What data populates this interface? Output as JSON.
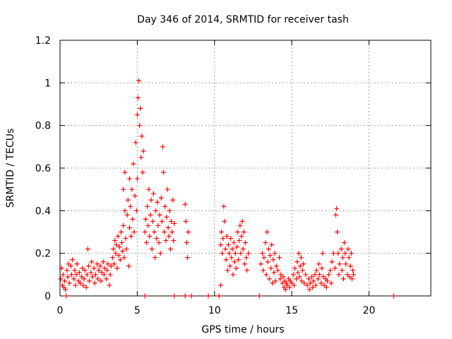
{
  "chart_data": {
    "type": "scatter",
    "title": "Day 346 of 2014, SRMTID for receiver tash",
    "xlabel": "GPS time / hours",
    "ylabel": "SRMTID / TECUs",
    "xlim": [
      0,
      24
    ],
    "ylim": [
      0,
      1.2
    ],
    "x_ticks": [
      0,
      5,
      10,
      15,
      20
    ],
    "y_ticks": [
      0,
      0.2,
      0.4,
      0.6,
      0.8,
      1,
      1.2
    ],
    "x_tick_labels": [
      "0",
      "5",
      "10",
      "15",
      "20"
    ],
    "y_tick_labels": [
      "0",
      "0.2",
      "0.4",
      "0.6",
      "0.8",
      "1",
      "1.2"
    ],
    "grid": true,
    "marker": "+",
    "color": "#ff0000",
    "series": [
      {
        "name": "SRMTID",
        "points": [
          [
            0.05,
            0.08
          ],
          [
            0.1,
            0.13
          ],
          [
            0.15,
            0.05
          ],
          [
            0.2,
            0.1
          ],
          [
            0.25,
            0.04
          ],
          [
            0.3,
            0.07
          ],
          [
            0.35,
            0.03
          ],
          [
            0.45,
            0.12
          ],
          [
            0.5,
            0.09
          ],
          [
            0.55,
            0.15
          ],
          [
            0.6,
            0.06
          ],
          [
            0.7,
            0.14
          ],
          [
            0.75,
            0.1
          ],
          [
            0.8,
            0.17
          ],
          [
            0.9,
            0.08
          ],
          [
            0.95,
            0.12
          ],
          [
            1.0,
            0.05
          ],
          [
            1.05,
            0.1
          ],
          [
            1.1,
            0.15
          ],
          [
            1.2,
            0.07
          ],
          [
            1.25,
            0.11
          ],
          [
            1.3,
            0.06
          ],
          [
            1.4,
            0.09
          ],
          [
            1.45,
            0.13
          ],
          [
            1.5,
            0.05
          ],
          [
            1.55,
            0.08
          ],
          [
            1.6,
            0.12
          ],
          [
            1.7,
            0.04
          ],
          [
            1.75,
            0.1
          ],
          [
            1.8,
            0.22
          ],
          [
            1.85,
            0.14
          ],
          [
            1.9,
            0.07
          ],
          [
            2.0,
            0.11
          ],
          [
            2.05,
            0.16
          ],
          [
            2.1,
            0.09
          ],
          [
            2.2,
            0.13
          ],
          [
            2.25,
            0.06
          ],
          [
            2.3,
            0.1
          ],
          [
            2.4,
            0.15
          ],
          [
            2.45,
            0.08
          ],
          [
            2.5,
            0.12
          ],
          [
            2.6,
            0.14
          ],
          [
            2.65,
            0.07
          ],
          [
            2.7,
            0.11
          ],
          [
            2.8,
            0.16
          ],
          [
            2.85,
            0.1
          ],
          [
            2.9,
            0.13
          ],
          [
            3.0,
            0.08
          ],
          [
            3.05,
            0.12
          ],
          [
            3.1,
            0.15
          ],
          [
            3.2,
            0.05
          ],
          [
            3.25,
            0.1
          ],
          [
            3.3,
            0.14
          ],
          [
            3.4,
            0.18
          ],
          [
            3.45,
            0.22
          ],
          [
            3.5,
            0.15
          ],
          [
            3.55,
            0.26
          ],
          [
            3.6,
            0.2
          ],
          [
            3.65,
            0.24
          ],
          [
            3.7,
            0.13
          ],
          [
            3.75,
            0.28
          ],
          [
            3.8,
            0.19
          ],
          [
            3.85,
            0.23
          ],
          [
            3.9,
            0.17
          ],
          [
            3.95,
            0.3
          ],
          [
            4.0,
            0.25
          ],
          [
            4.05,
            0.21
          ],
          [
            4.1,
            0.33
          ],
          [
            4.1,
            0.5
          ],
          [
            4.15,
            0.18
          ],
          [
            4.2,
            0.4
          ],
          [
            4.2,
            0.58
          ],
          [
            4.25,
            0.27
          ],
          [
            4.3,
            0.22
          ],
          [
            4.35,
            0.38
          ],
          [
            4.4,
            0.45
          ],
          [
            4.45,
            0.14
          ],
          [
            4.5,
            0.32
          ],
          [
            4.5,
            0.55
          ],
          [
            4.55,
            0.42
          ],
          [
            4.6,
            0.28
          ],
          [
            4.65,
            0.5
          ],
          [
            4.7,
            0.36
          ],
          [
            4.75,
            0.62
          ],
          [
            4.8,
            0.3
          ],
          [
            4.85,
            0.47
          ],
          [
            4.9,
            0.72
          ],
          [
            4.95,
            0.4
          ],
          [
            5.0,
            0.55
          ],
          [
            5.0,
            0.85
          ],
          [
            5.05,
            0.93
          ],
          [
            5.1,
            1.01
          ],
          [
            5.15,
            0.8
          ],
          [
            5.2,
            0.88
          ],
          [
            5.25,
            0.65
          ],
          [
            5.3,
            0.75
          ],
          [
            5.35,
            0.58
          ],
          [
            5.4,
            0.68
          ],
          [
            5.5,
            0.3
          ],
          [
            5.55,
            0.36
          ],
          [
            5.6,
            0.25
          ],
          [
            5.65,
            0.42
          ],
          [
            5.7,
            0.33
          ],
          [
            5.75,
            0.5
          ],
          [
            5.8,
            0.28
          ],
          [
            5.85,
            0.38
          ],
          [
            5.9,
            0.45
          ],
          [
            5.95,
            0.22
          ],
          [
            6.0,
            0.35
          ],
          [
            6.05,
            0.48
          ],
          [
            6.1,
            0.3
          ],
          [
            6.15,
            0.18
          ],
          [
            6.2,
            0.4
          ],
          [
            6.25,
            0.27
          ],
          [
            6.3,
            0.44
          ],
          [
            6.35,
            0.33
          ],
          [
            6.4,
            0.25
          ],
          [
            6.45,
            0.38
          ],
          [
            6.5,
            0.2
          ],
          [
            6.55,
            0.46
          ],
          [
            6.6,
            0.35
          ],
          [
            6.65,
            0.7
          ],
          [
            6.7,
            0.58
          ],
          [
            6.75,
            0.3
          ],
          [
            6.8,
            0.42
          ],
          [
            6.85,
            0.26
          ],
          [
            6.9,
            0.37
          ],
          [
            6.95,
            0.5
          ],
          [
            7.0,
            0.32
          ],
          [
            7.05,
            0.28
          ],
          [
            7.1,
            0.4
          ],
          [
            7.15,
            0.22
          ],
          [
            7.2,
            0.35
          ],
          [
            7.25,
            0.3
          ],
          [
            7.3,
            0.45
          ],
          [
            7.35,
            0.26
          ],
          [
            7.4,
            0.34
          ],
          [
            8.1,
            0.43
          ],
          [
            8.15,
            0.35
          ],
          [
            8.2,
            0.25
          ],
          [
            8.25,
            0.18
          ],
          [
            8.3,
            0.3
          ],
          [
            10.4,
            0.24
          ],
          [
            10.45,
            0.3
          ],
          [
            10.5,
            0.2
          ],
          [
            10.55,
            0.27
          ],
          [
            10.6,
            0.42
          ],
          [
            10.65,
            0.35
          ],
          [
            10.7,
            0.22
          ],
          [
            10.75,
            0.17
          ],
          [
            10.8,
            0.28
          ],
          [
            10.85,
            0.12
          ],
          [
            10.9,
            0.24
          ],
          [
            10.95,
            0.2
          ],
          [
            11.0,
            0.14
          ],
          [
            11.05,
            0.27
          ],
          [
            11.1,
            0.18
          ],
          [
            11.15,
            0.22
          ],
          [
            11.2,
            0.1
          ],
          [
            11.25,
            0.25
          ],
          [
            11.3,
            0.16
          ],
          [
            11.35,
            0.2
          ],
          [
            11.4,
            0.13
          ],
          [
            11.45,
            0.23
          ],
          [
            11.5,
            0.3
          ],
          [
            11.55,
            0.17
          ],
          [
            11.6,
            0.26
          ],
          [
            11.65,
            0.33
          ],
          [
            11.7,
            0.2
          ],
          [
            11.75,
            0.28
          ],
          [
            11.8,
            0.35
          ],
          [
            11.85,
            0.22
          ],
          [
            11.9,
            0.3
          ],
          [
            11.95,
            0.15
          ],
          [
            12.0,
            0.25
          ],
          [
            12.05,
            0.18
          ],
          [
            12.1,
            0.12
          ],
          [
            12.2,
            0.2
          ],
          [
            13.0,
            0.15
          ],
          [
            13.1,
            0.2
          ],
          [
            13.15,
            0.12
          ],
          [
            13.2,
            0.18
          ],
          [
            13.3,
            0.25
          ],
          [
            13.35,
            0.1
          ],
          [
            13.4,
            0.3
          ],
          [
            13.45,
            0.16
          ],
          [
            13.5,
            0.22
          ],
          [
            13.55,
            0.08
          ],
          [
            13.6,
            0.19
          ],
          [
            13.65,
            0.13
          ],
          [
            13.7,
            0.24
          ],
          [
            13.75,
            0.06
          ],
          [
            13.8,
            0.17
          ],
          [
            13.85,
            0.11
          ],
          [
            13.9,
            0.2
          ],
          [
            13.95,
            0.07
          ],
          [
            14.0,
            0.14
          ],
          [
            14.1,
            0.12
          ],
          [
            14.2,
            0.18
          ],
          [
            14.25,
            0.08
          ],
          [
            14.3,
            0.1
          ],
          [
            14.4,
            0.06
          ],
          [
            14.45,
            0.09
          ],
          [
            14.5,
            0.04
          ],
          [
            14.55,
            0.07
          ],
          [
            14.6,
            0.03
          ],
          [
            14.65,
            0.06
          ],
          [
            14.7,
            0.05
          ],
          [
            14.8,
            0.08
          ],
          [
            14.85,
            0.04
          ],
          [
            14.9,
            0.07
          ],
          [
            15.0,
            0.06
          ],
          [
            15.1,
            0.1
          ],
          [
            15.15,
            0.05
          ],
          [
            15.2,
            0.13
          ],
          [
            15.3,
            0.08
          ],
          [
            15.35,
            0.16
          ],
          [
            15.4,
            0.11
          ],
          [
            15.45,
            0.2
          ],
          [
            15.5,
            0.09
          ],
          [
            15.55,
            0.14
          ],
          [
            15.6,
            0.18
          ],
          [
            15.65,
            0.07
          ],
          [
            15.7,
            0.12
          ],
          [
            15.75,
            0.15
          ],
          [
            15.8,
            0.06
          ],
          [
            15.9,
            0.1
          ],
          [
            16.0,
            0.05
          ],
          [
            16.1,
            0.08
          ],
          [
            16.15,
            0.03
          ],
          [
            16.2,
            0.06
          ],
          [
            16.3,
            0.09
          ],
          [
            16.35,
            0.04
          ],
          [
            16.4,
            0.07
          ],
          [
            16.5,
            0.1
          ],
          [
            16.55,
            0.05
          ],
          [
            16.6,
            0.12
          ],
          [
            16.7,
            0.08
          ],
          [
            16.75,
            0.15
          ],
          [
            16.8,
            0.1
          ],
          [
            16.9,
            0.06
          ],
          [
            16.95,
            0.13
          ],
          [
            17.0,
            0.2
          ],
          [
            17.05,
            0.09
          ],
          [
            17.1,
            0.05
          ],
          [
            17.2,
            0.08
          ],
          [
            17.25,
            0.04
          ],
          [
            17.3,
            0.07
          ],
          [
            17.4,
            0.1
          ],
          [
            17.5,
            0.12
          ],
          [
            17.55,
            0.06
          ],
          [
            17.6,
            0.16
          ],
          [
            17.7,
            0.2
          ],
          [
            17.8,
            0.13
          ],
          [
            17.85,
            0.38
          ],
          [
            17.9,
            0.41
          ],
          [
            17.95,
            0.3
          ],
          [
            18.0,
            0.2
          ],
          [
            18.05,
            0.1
          ],
          [
            18.1,
            0.15
          ],
          [
            18.2,
            0.22
          ],
          [
            18.25,
            0.12
          ],
          [
            18.3,
            0.18
          ],
          [
            18.35,
            0.08
          ],
          [
            18.4,
            0.25
          ],
          [
            18.45,
            0.2
          ],
          [
            18.5,
            0.15
          ],
          [
            18.6,
            0.1
          ],
          [
            18.65,
            0.22
          ],
          [
            18.7,
            0.18
          ],
          [
            18.75,
            0.09
          ],
          [
            18.8,
            0.14
          ],
          [
            18.85,
            0.2
          ],
          [
            18.9,
            0.08
          ],
          [
            18.95,
            0.12
          ],
          [
            19.0,
            0.1
          ],
          [
            21.6,
            0.0
          ],
          [
            0.4,
            0.0
          ],
          [
            5.5,
            0.0
          ],
          [
            7.4,
            0.0
          ],
          [
            8.1,
            0.0
          ],
          [
            8.5,
            0.0
          ],
          [
            9.6,
            0.0
          ],
          [
            10.3,
            0.0
          ],
          [
            12.9,
            0.0
          ],
          [
            10.4,
            0.05
          ]
        ]
      }
    ]
  }
}
